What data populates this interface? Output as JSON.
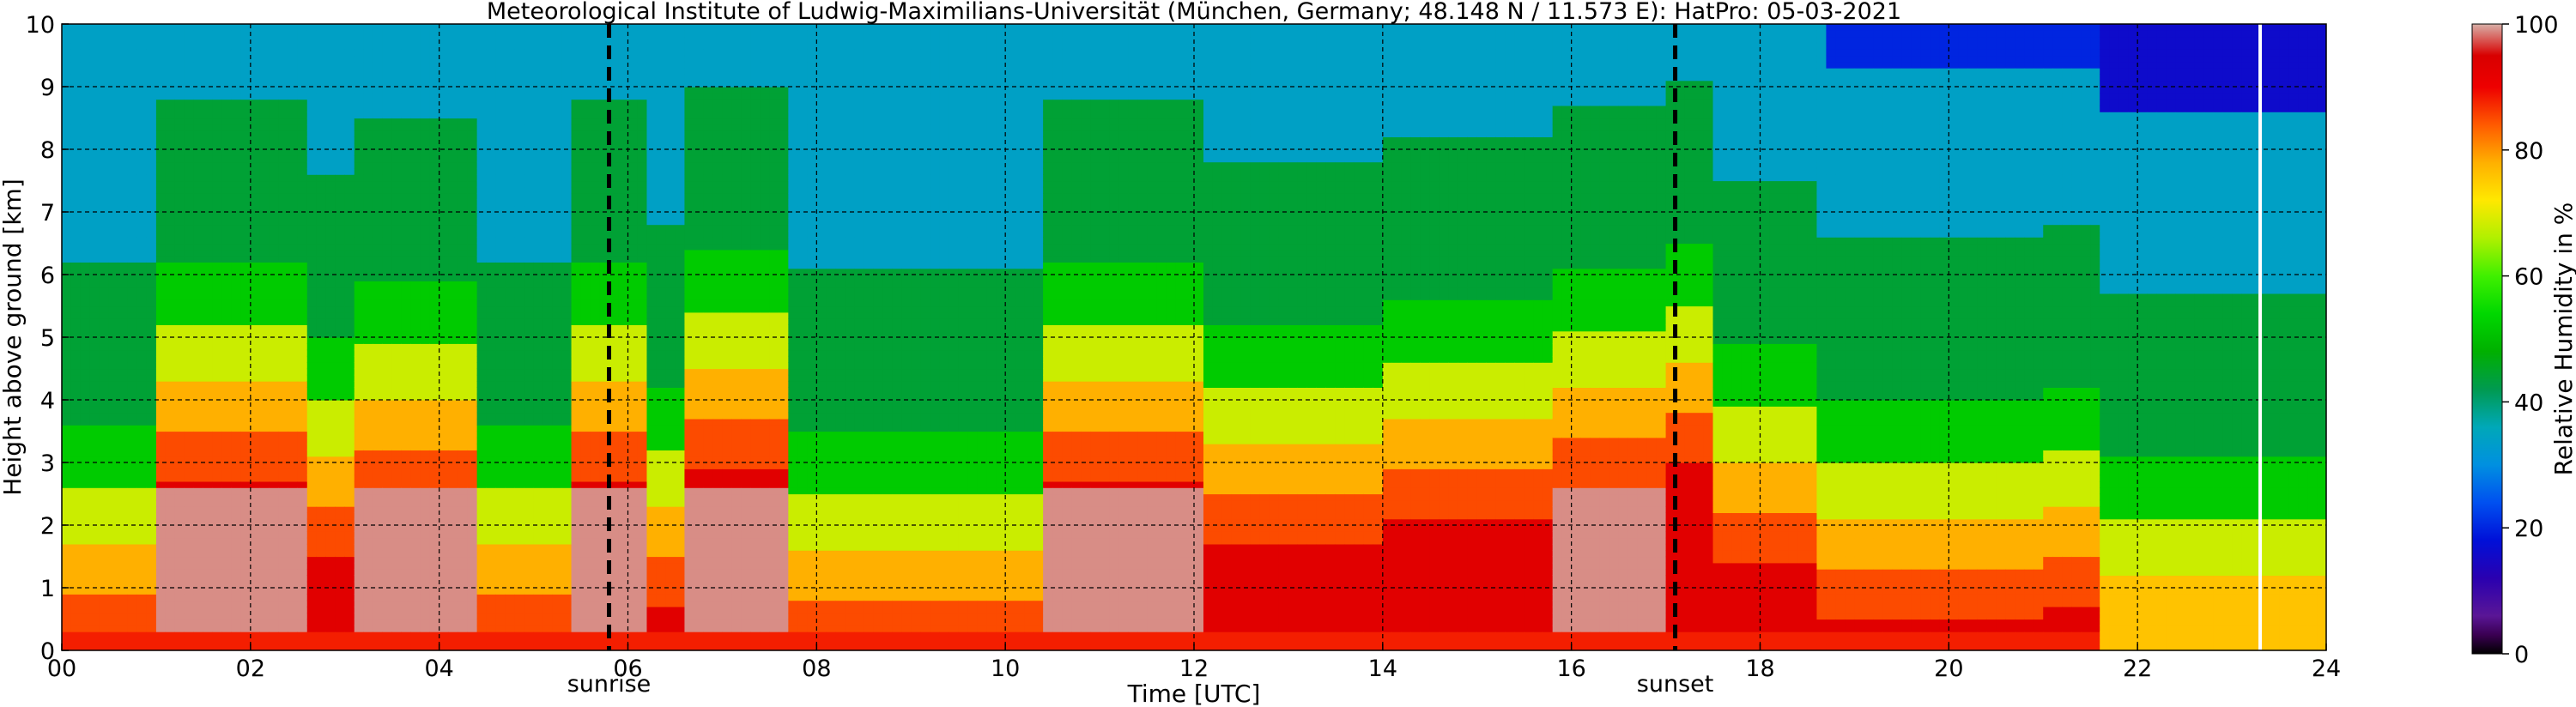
{
  "chart_data": {
    "type": "heatmap",
    "title": "Meteorological Institute of Ludwig-Maximilians-Universität (München, Germany; 48.148 N / 11.573 E):    HatPro: 05-03-2021",
    "xlabel": "Time [UTC]",
    "ylabel": "Height above ground [km]",
    "xlim": [
      0,
      24
    ],
    "ylim": [
      0,
      10
    ],
    "x_ticks": [
      {
        "value": 0,
        "label": "00"
      },
      {
        "value": 2,
        "label": "02"
      },
      {
        "value": 4,
        "label": "04"
      },
      {
        "value": 6,
        "label": "06"
      },
      {
        "value": 8,
        "label": "08"
      },
      {
        "value": 10,
        "label": "10"
      },
      {
        "value": 12,
        "label": "12"
      },
      {
        "value": 14,
        "label": "14"
      },
      {
        "value": 16,
        "label": "16"
      },
      {
        "value": 18,
        "label": "18"
      },
      {
        "value": 20,
        "label": "20"
      },
      {
        "value": 22,
        "label": "22"
      },
      {
        "value": 24,
        "label": "24"
      }
    ],
    "y_ticks": [
      {
        "value": 0,
        "label": "0"
      },
      {
        "value": 1,
        "label": "1"
      },
      {
        "value": 2,
        "label": "2"
      },
      {
        "value": 3,
        "label": "3"
      },
      {
        "value": 4,
        "label": "4"
      },
      {
        "value": 5,
        "label": "5"
      },
      {
        "value": 6,
        "label": "6"
      },
      {
        "value": 7,
        "label": "7"
      },
      {
        "value": 8,
        "label": "8"
      },
      {
        "value": 9,
        "label": "9"
      },
      {
        "value": 10,
        "label": "10"
      }
    ],
    "grid": true,
    "annotations": [
      {
        "x": 5.8,
        "label": "sunrise",
        "style": "dashed",
        "color": "#000000"
      },
      {
        "x": 17.1,
        "label": "sunset",
        "style": "dashed",
        "color": "#000000"
      },
      {
        "x": 23.3,
        "label": "",
        "style": "solid",
        "color": "#ffffff"
      }
    ],
    "colorbar": {
      "label": "Relative Humidity in %",
      "range": [
        0,
        100
      ],
      "ticks": [
        {
          "value": 0,
          "label": "0"
        },
        {
          "value": 20,
          "label": "20"
        },
        {
          "value": 40,
          "label": "40"
        },
        {
          "value": 60,
          "label": "60"
        },
        {
          "value": 80,
          "label": "80"
        },
        {
          "value": 100,
          "label": "100"
        }
      ],
      "colormap": [
        [
          0,
          "#000000"
        ],
        [
          3,
          "#3a0052"
        ],
        [
          6,
          "#5a1696"
        ],
        [
          12,
          "#2a00b0"
        ],
        [
          18,
          "#0010d8"
        ],
        [
          24,
          "#0050f0"
        ],
        [
          30,
          "#0090e0"
        ],
        [
          36,
          "#00a8b8"
        ],
        [
          42,
          "#009a50"
        ],
        [
          48,
          "#00b000"
        ],
        [
          54,
          "#00d800"
        ],
        [
          60,
          "#40f000"
        ],
        [
          66,
          "#b0f000"
        ],
        [
          72,
          "#ffe800"
        ],
        [
          78,
          "#ffb000"
        ],
        [
          84,
          "#ff5a00"
        ],
        [
          90,
          "#ee0000"
        ],
        [
          95,
          "#d80000"
        ],
        [
          100,
          "#d8b0a8"
        ]
      ]
    },
    "z_profile_model": {
      "layers_km": [
        [
          0.0,
          0.3,
          89
        ],
        [
          0.3,
          2.7,
          93
        ],
        [
          2.7,
          3.5,
          85
        ],
        [
          3.5,
          4.3,
          78
        ],
        [
          4.3,
          5.2,
          68
        ],
        [
          5.2,
          6.2,
          52
        ],
        [
          6.2,
          8.8,
          44
        ],
        [
          8.8,
          10.0,
          34
        ]
      ],
      "time_columns": [
        {
          "t": [
            0.0,
            1.0
          ],
          "shift_km": -2.6,
          "core": 0
        },
        {
          "t": [
            1.0,
            2.6
          ],
          "shift_km": 0.0,
          "core": 1
        },
        {
          "t": [
            2.6,
            3.1
          ],
          "shift_km": -1.2,
          "core": 0
        },
        {
          "t": [
            3.1,
            4.4
          ],
          "shift_km": -0.3,
          "core": 1
        },
        {
          "t": [
            4.4,
            5.4
          ],
          "shift_km": -2.6,
          "core": 0
        },
        {
          "t": [
            5.4,
            6.2
          ],
          "shift_km": 0.0,
          "core": 1
        },
        {
          "t": [
            6.2,
            6.6
          ],
          "shift_km": -2.0,
          "core": 0
        },
        {
          "t": [
            6.6,
            7.7
          ],
          "shift_km": 0.2,
          "core": 1
        },
        {
          "t": [
            7.7,
            10.4
          ],
          "shift_km": -2.7,
          "core": 0
        },
        {
          "t": [
            10.4,
            12.1
          ],
          "shift_km": 0.0,
          "core": 1
        },
        {
          "t": [
            12.1,
            14.0
          ],
          "shift_km": -1.0,
          "core": 0
        },
        {
          "t": [
            14.0,
            15.8
          ],
          "shift_km": -0.6,
          "core": 0
        },
        {
          "t": [
            15.8,
            17.0
          ],
          "shift_km": -0.1,
          "core": 1
        },
        {
          "t": [
            17.0,
            17.5
          ],
          "shift_km": 0.3,
          "core": 0
        },
        {
          "t": [
            17.5,
            18.6
          ],
          "shift_km": -1.3,
          "core": 0
        },
        {
          "t": [
            18.6,
            21.0
          ],
          "shift_km": -2.2,
          "core": 0
        },
        {
          "t": [
            21.0,
            21.6
          ],
          "shift_km": -2.0,
          "core": 0
        },
        {
          "t": [
            21.6,
            24.0
          ],
          "shift_km": -3.1,
          "core": 0
        }
      ]
    }
  }
}
